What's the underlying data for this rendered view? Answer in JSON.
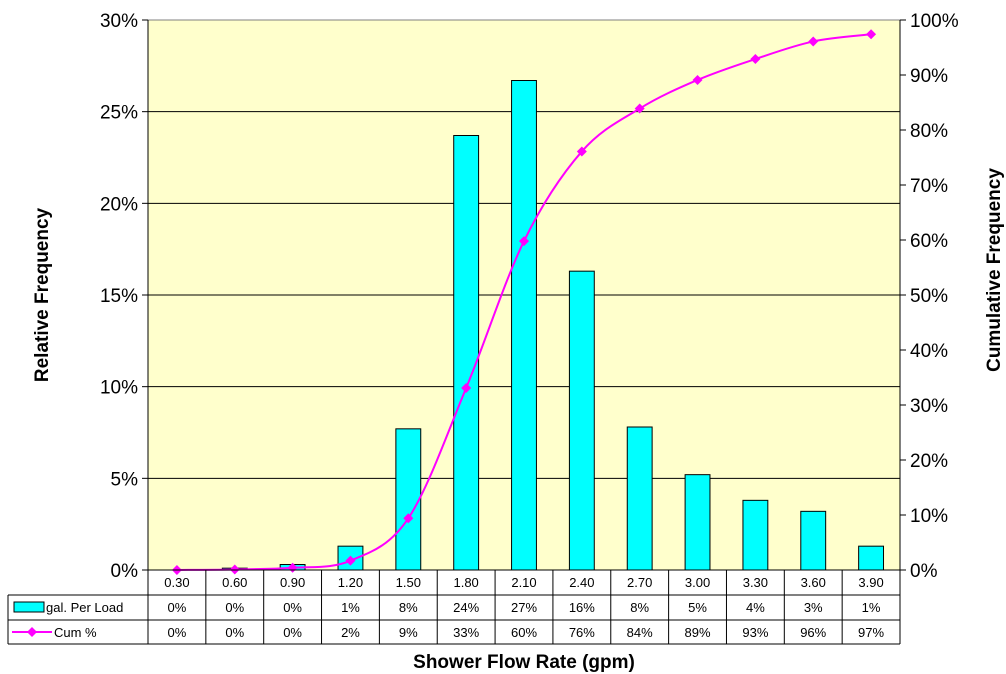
{
  "chart_data": {
    "type": "bar",
    "xlabel": "Shower Flow Rate (gpm)",
    "ylabel": "Relative Frequency",
    "y2label": "Cumulative Frequency",
    "ylim": [
      0,
      30
    ],
    "y2lim": [
      0,
      100
    ],
    "yticks": [
      "0%",
      "5%",
      "10%",
      "15%",
      "20%",
      "25%",
      "30%"
    ],
    "y2ticks": [
      "0%",
      "10%",
      "20%",
      "30%",
      "40%",
      "50%",
      "60%",
      "70%",
      "80%",
      "90%",
      "100%"
    ],
    "categories": [
      "0.30",
      "0.60",
      "0.90",
      "1.20",
      "1.50",
      "1.80",
      "2.10",
      "2.40",
      "2.70",
      "3.00",
      "3.30",
      "3.60",
      "3.90"
    ],
    "series": [
      {
        "name": "gal. Per Load",
        "type": "bar",
        "color": "#00ffff",
        "values": [
          0.0,
          0.1,
          0.3,
          1.3,
          7.7,
          23.7,
          26.7,
          16.3,
          7.8,
          5.2,
          3.8,
          3.2,
          1.3
        ],
        "labels": [
          "0%",
          "0%",
          "0%",
          "1%",
          "8%",
          "24%",
          "27%",
          "16%",
          "8%",
          "5%",
          "4%",
          "3%",
          "1%"
        ]
      },
      {
        "name": "Cum %",
        "type": "line",
        "color": "#ff00ff",
        "axis": "secondary",
        "values": [
          0.0,
          0.1,
          0.4,
          1.7,
          9.4,
          33.1,
          59.8,
          76.1,
          83.9,
          89.1,
          92.9,
          96.1,
          97.4
        ],
        "labels": [
          "0%",
          "0%",
          "0%",
          "2%",
          "9%",
          "33%",
          "60%",
          "76%",
          "84%",
          "89%",
          "93%",
          "96%",
          "97%"
        ]
      }
    ],
    "plot_background": "#ffffcc",
    "grid": true,
    "legend": "data-table"
  }
}
